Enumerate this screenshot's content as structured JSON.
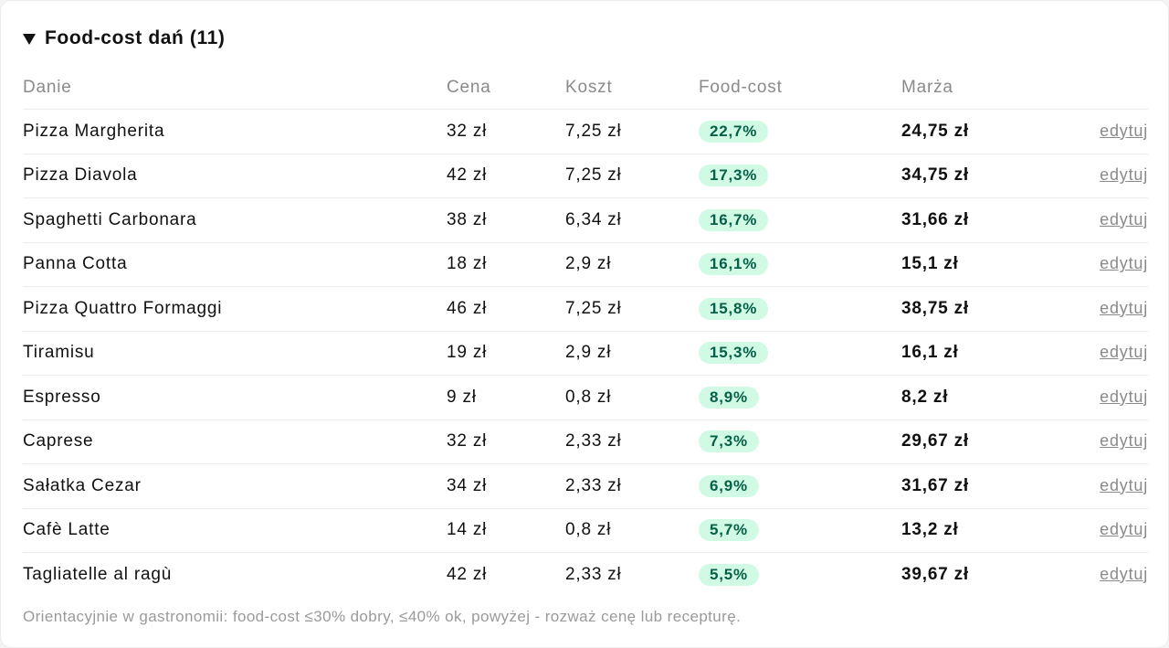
{
  "section": {
    "title": "Food-cost dań (11)",
    "expanded": true
  },
  "table": {
    "headers": [
      "Danie",
      "Cena",
      "Koszt",
      "Food-cost",
      "Marża",
      ""
    ],
    "rows": [
      {
        "name": "Pizza Margherita",
        "price": "32 zł",
        "cost": "7,25 zł",
        "foodcost": "22,7%",
        "margin": "24,75 zł",
        "action": "edytuj"
      },
      {
        "name": "Pizza Diavola",
        "price": "42 zł",
        "cost": "7,25 zł",
        "foodcost": "17,3%",
        "margin": "34,75 zł",
        "action": "edytuj"
      },
      {
        "name": "Spaghetti Carbonara",
        "price": "38 zł",
        "cost": "6,34 zł",
        "foodcost": "16,7%",
        "margin": "31,66 zł",
        "action": "edytuj"
      },
      {
        "name": "Panna Cotta",
        "price": "18 zł",
        "cost": "2,9 zł",
        "foodcost": "16,1%",
        "margin": "15,1 zł",
        "action": "edytuj"
      },
      {
        "name": "Pizza Quattro Formaggi",
        "price": "46 zł",
        "cost": "7,25 zł",
        "foodcost": "15,8%",
        "margin": "38,75 zł",
        "action": "edytuj"
      },
      {
        "name": "Tiramisu",
        "price": "19 zł",
        "cost": "2,9 zł",
        "foodcost": "15,3%",
        "margin": "16,1 zł",
        "action": "edytuj"
      },
      {
        "name": "Espresso",
        "price": "9 zł",
        "cost": "0,8 zł",
        "foodcost": "8,9%",
        "margin": "8,2 zł",
        "action": "edytuj"
      },
      {
        "name": "Caprese",
        "price": "32 zł",
        "cost": "2,33 zł",
        "foodcost": "7,3%",
        "margin": "29,67 zł",
        "action": "edytuj"
      },
      {
        "name": "Sałatka Cezar",
        "price": "34 zł",
        "cost": "2,33 zł",
        "foodcost": "6,9%",
        "margin": "31,67 zł",
        "action": "edytuj"
      },
      {
        "name": "Cafè Latte",
        "price": "14 zł",
        "cost": "0,8 zł",
        "foodcost": "5,7%",
        "margin": "13,2 zł",
        "action": "edytuj"
      },
      {
        "name": "Tagliatelle al ragù",
        "price": "42 zł",
        "cost": "2,33 zł",
        "foodcost": "5,5%",
        "margin": "39,67 zł",
        "action": "edytuj"
      }
    ]
  },
  "footnote": "Orientacyjnie w gastronomii: food-cost ≤30% dobry, ≤40% ok, powyżej - rozważ cenę lub recepturę.",
  "colors": {
    "pill_background": "#d1fae5",
    "pill_text": "#065f46",
    "muted_text": "#8a8a8a"
  },
  "icons": {
    "disclosure": "triangle-down-icon"
  }
}
